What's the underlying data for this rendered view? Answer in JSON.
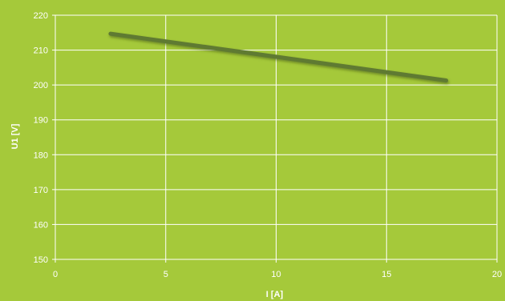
{
  "chart_data": {
    "type": "line",
    "title": "",
    "xlabel": "I [A]",
    "ylabel": "U1 [V]",
    "xlim": [
      0,
      20
    ],
    "ylim": [
      150,
      220
    ],
    "x_ticks": [
      0,
      5,
      10,
      15,
      20
    ],
    "y_ticks": [
      150,
      160,
      170,
      180,
      190,
      200,
      210,
      220
    ],
    "grid": true,
    "legend": "none",
    "series": [
      {
        "color": "#5f7a30",
        "x": [
          2.5,
          17.7
        ],
        "y": [
          214.7,
          201.3
        ]
      }
    ]
  },
  "colors": {
    "background": "#a5c93a",
    "grid": "#ffffff",
    "text": "#ffffff"
  }
}
